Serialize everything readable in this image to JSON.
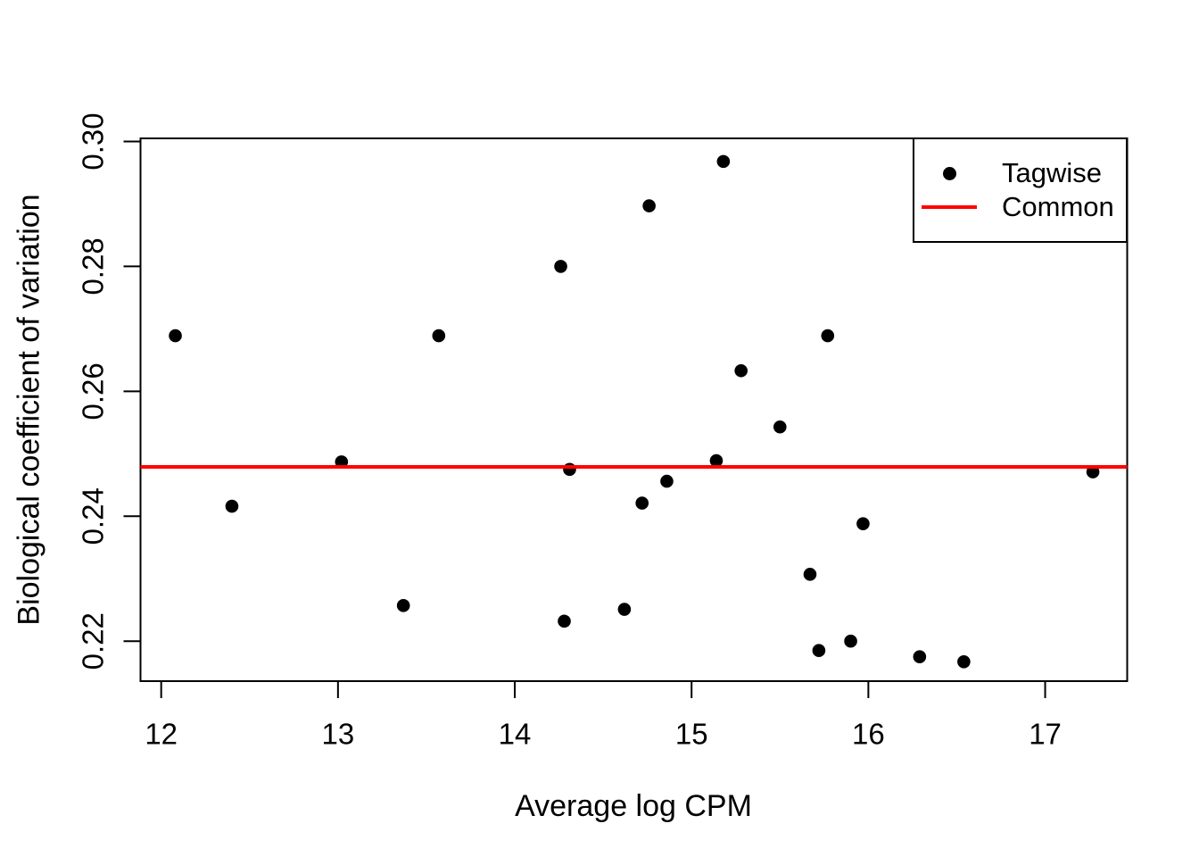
{
  "chart_data": {
    "type": "scatter",
    "title": "",
    "xlabel": "Average log CPM",
    "ylabel": "Biological coefficient of variation",
    "xlim": [
      11.883,
      17.464
    ],
    "ylim": [
      0.2136,
      0.3005
    ],
    "grid": false,
    "x_ticks": [
      12,
      13,
      14,
      15,
      16,
      17
    ],
    "x_tick_labels": [
      "12",
      "13",
      "14",
      "15",
      "16",
      "17"
    ],
    "y_ticks": [
      0.22,
      0.24,
      0.26,
      0.28,
      0.3
    ],
    "y_tick_labels": [
      "0.22",
      "0.24",
      "0.26",
      "0.28",
      "0.30"
    ],
    "legend": {
      "position": "topright",
      "entries": [
        {
          "label": "Tagwise",
          "type": "point",
          "color": "#000000"
        },
        {
          "label": "Common",
          "type": "line",
          "color": "#ff0000"
        }
      ]
    },
    "series": [
      {
        "name": "Tagwise",
        "type": "scatter",
        "marker": "filled-circle",
        "color": "#000000",
        "points": [
          [
            12.08,
            0.2689
          ],
          [
            12.4,
            0.2416
          ],
          [
            13.02,
            0.2487
          ],
          [
            13.37,
            0.2257
          ],
          [
            13.57,
            0.2689
          ],
          [
            14.26,
            0.28
          ],
          [
            14.28,
            0.2232
          ],
          [
            14.31,
            0.2475
          ],
          [
            14.62,
            0.2251
          ],
          [
            14.72,
            0.2421
          ],
          [
            14.76,
            0.2897
          ],
          [
            14.86,
            0.2456
          ],
          [
            15.14,
            0.2489
          ],
          [
            15.18,
            0.2968
          ],
          [
            15.28,
            0.2633
          ],
          [
            15.5,
            0.2543
          ],
          [
            15.67,
            0.2307
          ],
          [
            15.72,
            0.2185
          ],
          [
            15.77,
            0.2689
          ],
          [
            15.9,
            0.22
          ],
          [
            15.97,
            0.2388
          ],
          [
            16.29,
            0.2175
          ],
          [
            16.54,
            0.2167
          ],
          [
            17.27,
            0.2471
          ]
        ]
      },
      {
        "name": "Common",
        "type": "hline",
        "color": "#ff0000",
        "y": 0.2479
      }
    ]
  },
  "colors": {
    "point": "#000000",
    "common_line": "#ff0000",
    "frame": "#000000",
    "background": "#ffffff"
  }
}
